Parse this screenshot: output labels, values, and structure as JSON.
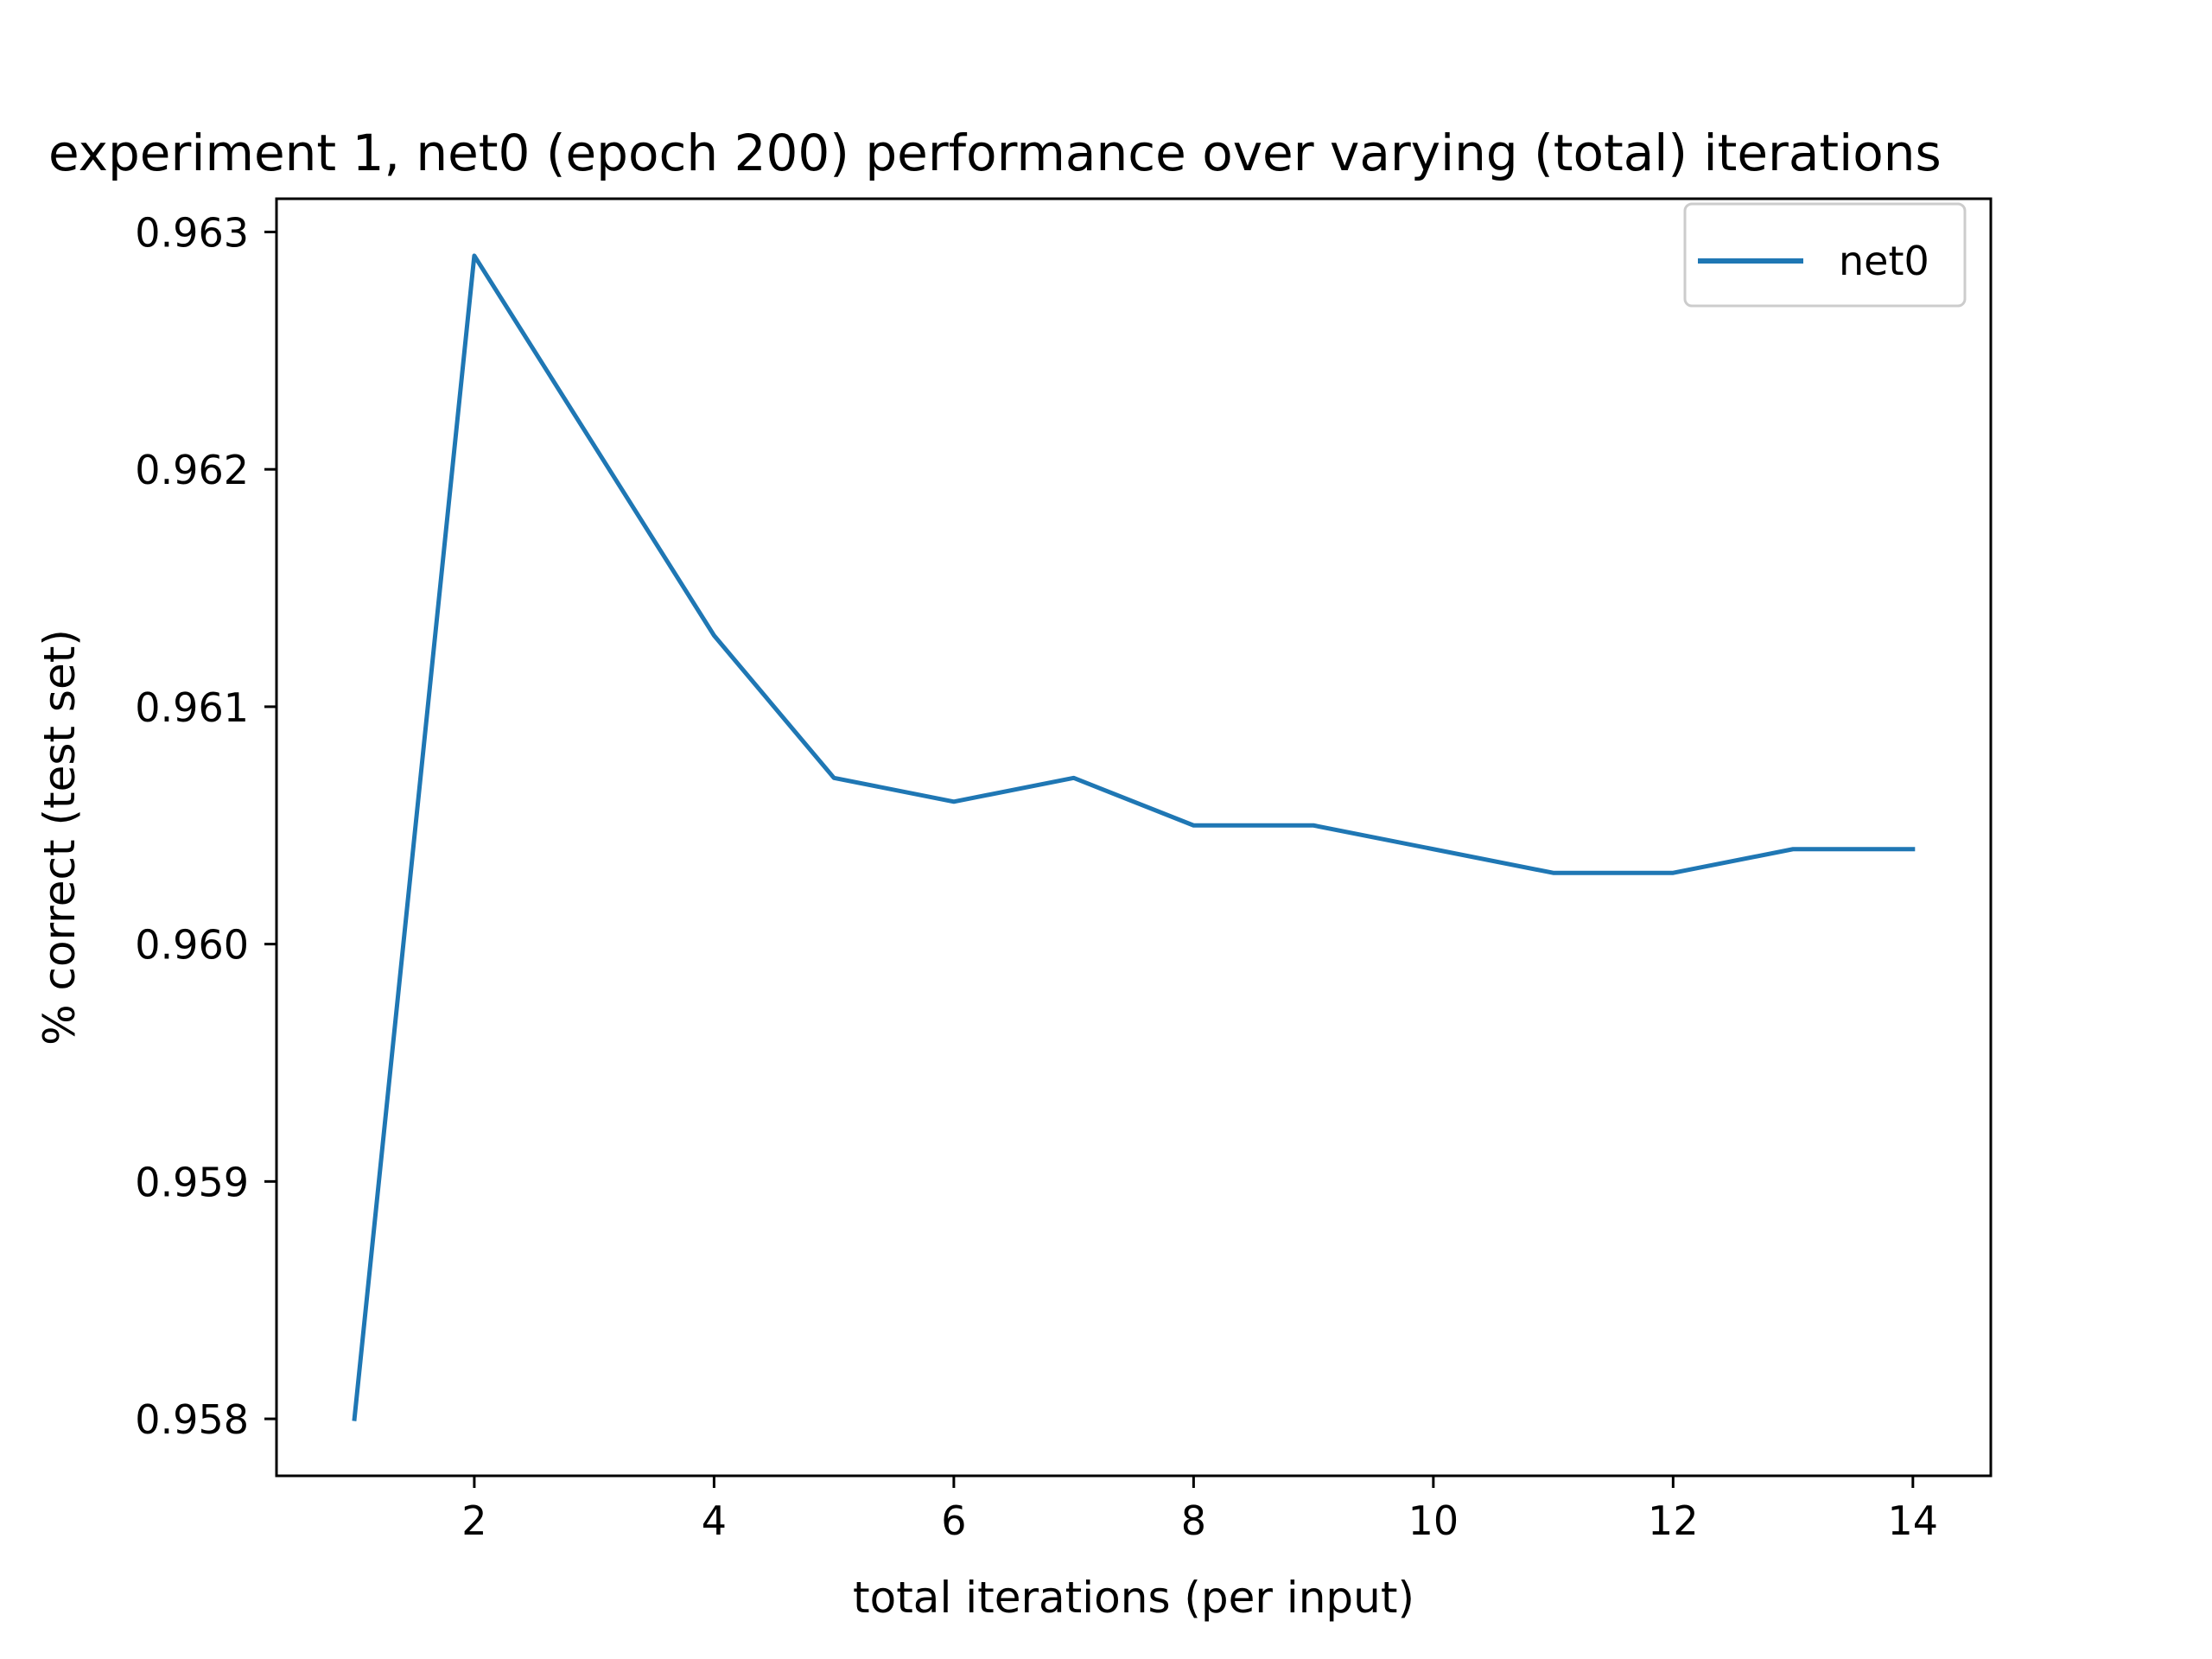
{
  "chart_data": {
    "type": "line",
    "title": "experiment 1, net0 (epoch 200) performance over varying (total) iterations",
    "xlabel": "total iterations (per input)",
    "ylabel": "% correct (test set)",
    "xlim": [
      0.35,
      14.65
    ],
    "ylim": [
      0.95776,
      0.96314
    ],
    "xticks": [
      2,
      4,
      6,
      8,
      10,
      12,
      14
    ],
    "xtick_labels": [
      "2",
      "4",
      "6",
      "8",
      "10",
      "12",
      "14"
    ],
    "yticks": [
      0.958,
      0.959,
      0.96,
      0.961,
      0.962,
      0.963
    ],
    "ytick_labels": [
      "0.958",
      "0.959",
      "0.960",
      "0.961",
      "0.962",
      "0.963"
    ],
    "grid": false,
    "legend_position": "top-right",
    "series": [
      {
        "name": "net0",
        "color": "#1f77b4",
        "x": [
          1,
          2,
          3,
          4,
          5,
          6,
          7,
          8,
          9,
          10,
          11,
          12,
          13,
          14
        ],
        "y": [
          0.958,
          0.9629,
          0.9621,
          0.9613,
          0.9607,
          0.9606,
          0.9607,
          0.9605,
          0.9605,
          0.9604,
          0.9603,
          0.9603,
          0.9604,
          0.9604
        ]
      }
    ]
  }
}
